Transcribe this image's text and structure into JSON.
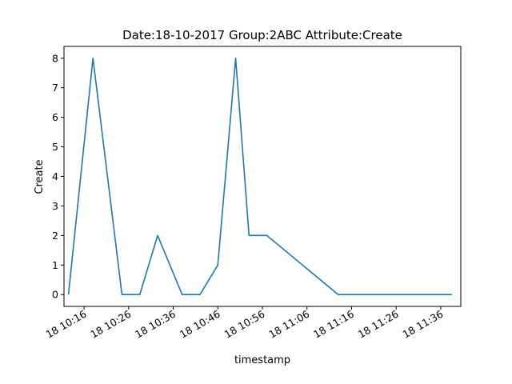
{
  "chart_data": {
    "type": "line",
    "title": "Date:18-10-2017  Group:2ABC Attribute:Create",
    "xlabel": "timestamp",
    "ylabel": "Create",
    "xlim": [
      "10:11:30",
      "11:40:30"
    ],
    "ylim": [
      -0.4,
      8.4
    ],
    "grid": false,
    "x_ticks": [
      {
        "value": "10:16",
        "label": "18 10:16"
      },
      {
        "value": "10:26",
        "label": "18 10:26"
      },
      {
        "value": "10:36",
        "label": "18 10:36"
      },
      {
        "value": "10:46",
        "label": "18 10:46"
      },
      {
        "value": "10:56",
        "label": "18 10:56"
      },
      {
        "value": "11:06",
        "label": "18 11:06"
      },
      {
        "value": "11:16",
        "label": "18 11:16"
      },
      {
        "value": "11:26",
        "label": "18 11:26"
      },
      {
        "value": "11:36",
        "label": "18 11:36"
      }
    ],
    "y_ticks": [
      0,
      1,
      2,
      3,
      4,
      5,
      6,
      7,
      8
    ],
    "series": [
      {
        "color": "#1f77b4",
        "x": [
          "10:12:30",
          "10:18:00",
          "10:24:30",
          "10:28:30",
          "10:32:30",
          "10:38:00",
          "10:42:00",
          "10:46:00",
          "10:50:00",
          "10:53:00",
          "10:57:00",
          "11:13:00",
          "11:38:30"
        ],
        "y": [
          0,
          8,
          0,
          0,
          2,
          0,
          0,
          1,
          8,
          2,
          2,
          0,
          0
        ]
      }
    ]
  }
}
